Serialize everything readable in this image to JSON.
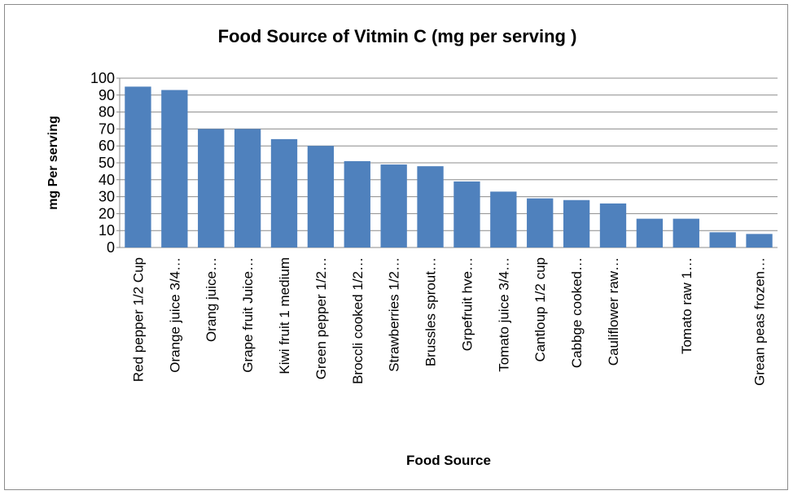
{
  "chart_data": {
    "type": "bar",
    "title": "Food Source of Vitmin C (mg per serving )",
    "x_label": "Food Source",
    "y_label": "mg Per serving",
    "categories": [
      "Red pepper 1/2 Cup",
      "Orange juice 3/4…",
      "Orang juice…",
      "Grape fruit Juice…",
      "Kiwi fruit 1 medium",
      "Green pepper 1/2…",
      "Broccli cooked 1/2…",
      "Strawberries 1/2…",
      "Brussles sprout…",
      "Grpefruit hve…",
      "Tomato juice 3/4…",
      "Cantloup 1/2 cup",
      "Cabbge cooked…",
      "Cauliflower raw…",
      null,
      "Tomato raw 1…",
      null,
      "Grean peas frozen…"
    ],
    "values": [
      95,
      93,
      70,
      70,
      64,
      60,
      51,
      49,
      48,
      39,
      33,
      29,
      28,
      26,
      17,
      17,
      9,
      8
    ],
    "color": "#4f81bd",
    "ylim": [
      0,
      100
    ],
    "yticks": [
      0,
      10,
      20,
      30,
      40,
      50,
      60,
      70,
      80,
      90,
      100
    ],
    "grid": true
  }
}
